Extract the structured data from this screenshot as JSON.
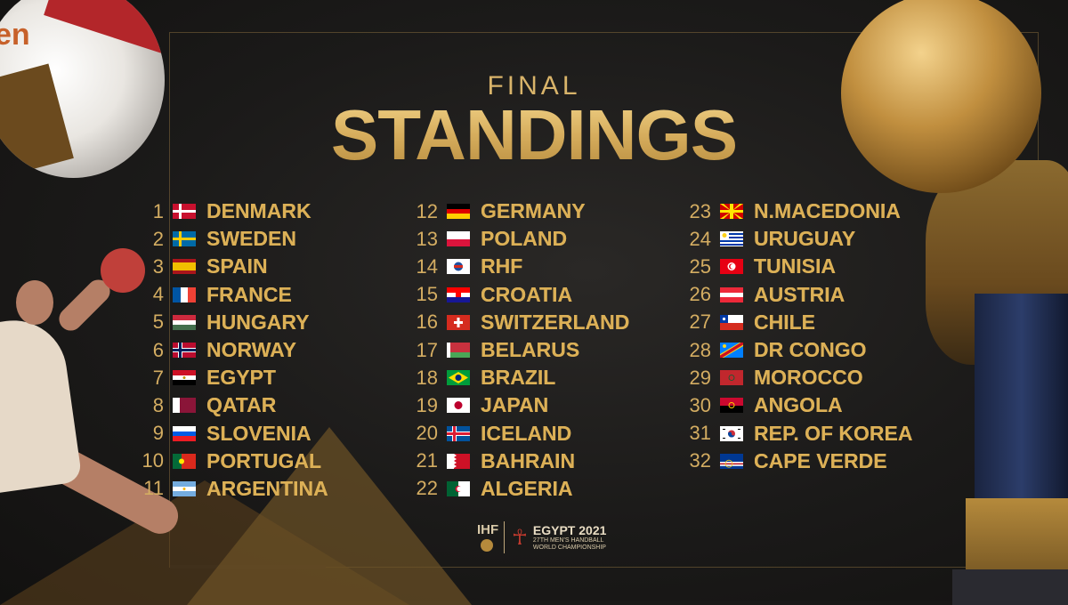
{
  "title": {
    "small": "FINAL",
    "big": "STANDINGS"
  },
  "decor": {
    "ball_brand": "en"
  },
  "columns": [
    [
      {
        "rank": "1",
        "name": "DENMARK",
        "flag": "denmark"
      },
      {
        "rank": "2",
        "name": "SWEDEN",
        "flag": "sweden"
      },
      {
        "rank": "3",
        "name": "SPAIN",
        "flag": "spain"
      },
      {
        "rank": "4",
        "name": "FRANCE",
        "flag": "france"
      },
      {
        "rank": "5",
        "name": "HUNGARY",
        "flag": "hungary"
      },
      {
        "rank": "6",
        "name": "NORWAY",
        "flag": "norway"
      },
      {
        "rank": "7",
        "name": "EGYPT",
        "flag": "egypt"
      },
      {
        "rank": "8",
        "name": "QATAR",
        "flag": "qatar"
      },
      {
        "rank": "9",
        "name": "SLOVENIA",
        "flag": "slovenia"
      },
      {
        "rank": "10",
        "name": "PORTUGAL",
        "flag": "portugal"
      },
      {
        "rank": "11",
        "name": "ARGENTINA",
        "flag": "argentina"
      }
    ],
    [
      {
        "rank": "12",
        "name": "GERMANY",
        "flag": "germany"
      },
      {
        "rank": "13",
        "name": "POLAND",
        "flag": "poland"
      },
      {
        "rank": "14",
        "name": "RHF",
        "flag": "rhf"
      },
      {
        "rank": "15",
        "name": "CROATIA",
        "flag": "croatia"
      },
      {
        "rank": "16",
        "name": "SWITZERLAND",
        "flag": "switzerland"
      },
      {
        "rank": "17",
        "name": "BELARUS",
        "flag": "belarus"
      },
      {
        "rank": "18",
        "name": "BRAZIL",
        "flag": "brazil"
      },
      {
        "rank": "19",
        "name": "JAPAN",
        "flag": "japan"
      },
      {
        "rank": "20",
        "name": "ICELAND",
        "flag": "iceland"
      },
      {
        "rank": "21",
        "name": "BAHRAIN",
        "flag": "bahrain"
      },
      {
        "rank": "22",
        "name": "ALGERIA",
        "flag": "algeria"
      }
    ],
    [
      {
        "rank": "23",
        "name": "N.MACEDONIA",
        "flag": "macedonia"
      },
      {
        "rank": "24",
        "name": "URUGUAY",
        "flag": "uruguay"
      },
      {
        "rank": "25",
        "name": "TUNISIA",
        "flag": "tunisia"
      },
      {
        "rank": "26",
        "name": "AUSTRIA",
        "flag": "austria"
      },
      {
        "rank": "27",
        "name": "CHILE",
        "flag": "chile"
      },
      {
        "rank": "28",
        "name": "DR CONGO",
        "flag": "drcongo"
      },
      {
        "rank": "29",
        "name": "MOROCCO",
        "flag": "morocco"
      },
      {
        "rank": "30",
        "name": "ANGOLA",
        "flag": "angola"
      },
      {
        "rank": "31",
        "name": "REP. OF KOREA",
        "flag": "korea"
      },
      {
        "rank": "32",
        "name": "CAPE VERDE",
        "flag": "capeverde"
      }
    ]
  ],
  "footer": {
    "org": "IHF",
    "event_title": "EGYPT 2021",
    "event_line1": "27TH MEN'S HANDBALL",
    "event_line2": "WORLD CHAMPIONSHIP"
  },
  "colors": {
    "gold": "#dcb056",
    "background": "#1b1a19"
  }
}
